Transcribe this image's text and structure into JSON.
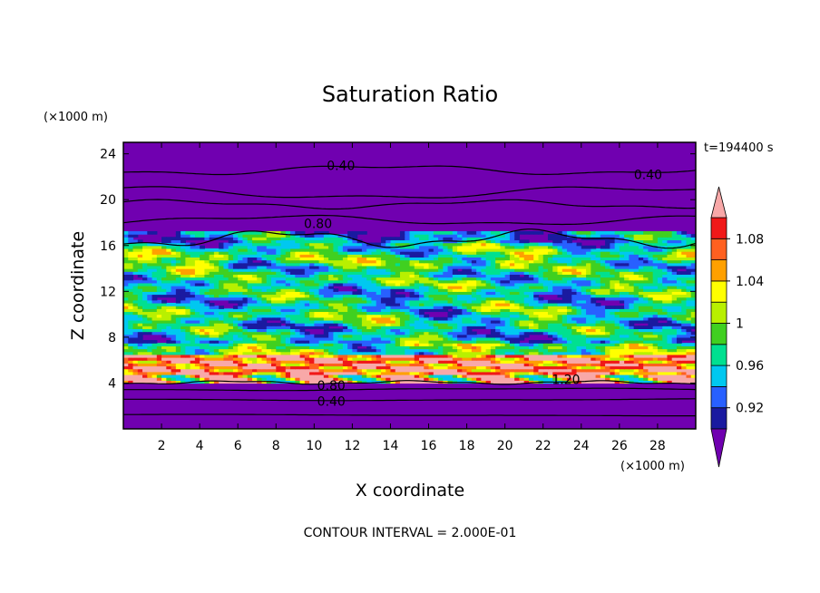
{
  "chart_data": {
    "type": "heatmap",
    "title": "Saturation Ratio",
    "xlabel": "X coordinate",
    "ylabel": "Z coordinate",
    "x_unit": "(×1000 m)",
    "y_unit": "(×1000 m)",
    "time_label": "t=194400 s",
    "footer": "CONTOUR INTERVAL = 2.000E-01",
    "xlim": [
      0,
      30
    ],
    "ylim": [
      0,
      25
    ],
    "x_ticks": [
      "2",
      "4",
      "6",
      "8",
      "10",
      "12",
      "14",
      "16",
      "18",
      "20",
      "22",
      "24",
      "26",
      "28"
    ],
    "y_ticks": [
      "4",
      "8",
      "12",
      "16",
      "20",
      "24"
    ],
    "colorbar": {
      "tick_labels": [
        "0.92",
        "0.96",
        "1",
        "1.04",
        "1.08"
      ],
      "levels": [
        0.9,
        0.92,
        0.94,
        0.96,
        0.98,
        1.0,
        1.02,
        1.04,
        1.06,
        1.08,
        1.1
      ],
      "colors": [
        "#7000b0",
        "#1a1aa0",
        "#2860ff",
        "#00c8f0",
        "#00e090",
        "#40d020",
        "#b8f000",
        "#ffff00",
        "#ffa000",
        "#ff6020",
        "#f01818",
        "#f8a8a8"
      ]
    },
    "contour_labels": [
      {
        "text": "0.40",
        "x": 11.4,
        "z": 23.0
      },
      {
        "text": "0.40",
        "x": 27.5,
        "z": 22.2
      },
      {
        "text": "0.80",
        "x": 10.2,
        "z": 17.9
      },
      {
        "text": "0.80",
        "x": 10.9,
        "z": 3.8
      },
      {
        "text": "0.40",
        "x": 10.9,
        "z": 2.4
      },
      {
        "text": "1.20",
        "x": 23.2,
        "z": 4.3
      }
    ]
  }
}
